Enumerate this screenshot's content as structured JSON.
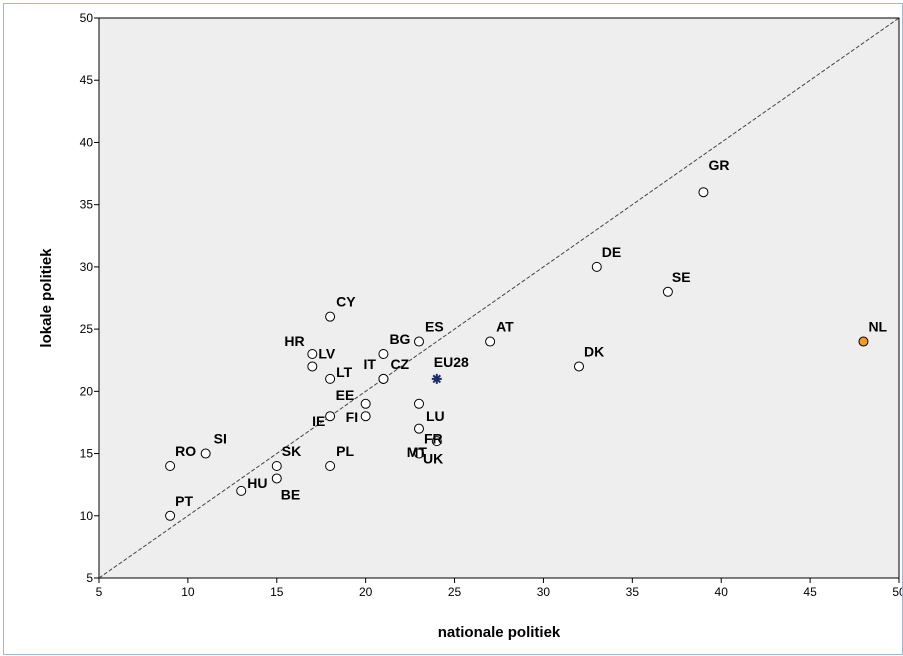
{
  "chart_data": {
    "type": "scatter",
    "xlabel": "nationale politiek",
    "ylabel": "lokale politiek",
    "xlim": [
      5,
      50
    ],
    "ylim": [
      5,
      50
    ],
    "xticks": [
      "5",
      "10",
      "15",
      "20",
      "25",
      "30",
      "35",
      "40",
      "45",
      "50"
    ],
    "yticks": [
      "5",
      "10",
      "15",
      "20",
      "25",
      "30",
      "35",
      "40",
      "45",
      "50"
    ],
    "grid": false,
    "reference_line": "y = x (dashed)",
    "colors": {
      "plot_background": "#eeeeee",
      "point_fill": "#ffffff",
      "highlight_point": "#f39c1f",
      "average_point": "#1b2a6b",
      "reference_line": "#444444"
    },
    "points": [
      {
        "label": "GR",
        "x": 39,
        "y": 36
      },
      {
        "label": "DE",
        "x": 33,
        "y": 30
      },
      {
        "label": "SE",
        "x": 37,
        "y": 28
      },
      {
        "label": "NL",
        "x": 48,
        "y": 24,
        "highlight": true
      },
      {
        "label": "DK",
        "x": 32,
        "y": 22
      },
      {
        "label": "AT",
        "x": 27,
        "y": 24
      },
      {
        "label": "ES",
        "x": 23,
        "y": 24
      },
      {
        "label": "BG",
        "x": 21,
        "y": 23
      },
      {
        "label": "CY",
        "x": 18,
        "y": 26
      },
      {
        "label": "HR",
        "x": 17,
        "y": 23
      },
      {
        "label": "LV",
        "x": 17,
        "y": 22
      },
      {
        "label": "LT",
        "x": 18,
        "y": 21
      },
      {
        "label": "IT",
        "x": 21,
        "y": 21
      },
      {
        "label": "CZ",
        "x": 21,
        "y": 21
      },
      {
        "label": "EU28",
        "x": 24,
        "y": 21,
        "average": true
      },
      {
        "label": "LU",
        "x": 23,
        "y": 19
      },
      {
        "label": "EE",
        "x": 20,
        "y": 19
      },
      {
        "label": "FI",
        "x": 20,
        "y": 18
      },
      {
        "label": "FR",
        "x": 23,
        "y": 17
      },
      {
        "label": "IE",
        "x": 18,
        "y": 18
      },
      {
        "label": "MT",
        "x": 24,
        "y": 16
      },
      {
        "label": "UK",
        "x": 23,
        "y": 15
      },
      {
        "label": "PL",
        "x": 18,
        "y": 14
      },
      {
        "label": "SK",
        "x": 15,
        "y": 14
      },
      {
        "label": "BE",
        "x": 15,
        "y": 13
      },
      {
        "label": "HU",
        "x": 13,
        "y": 12
      },
      {
        "label": "SI",
        "x": 11,
        "y": 15
      },
      {
        "label": "RO",
        "x": 9,
        "y": 14
      },
      {
        "label": "PT",
        "x": 9,
        "y": 10
      }
    ]
  }
}
